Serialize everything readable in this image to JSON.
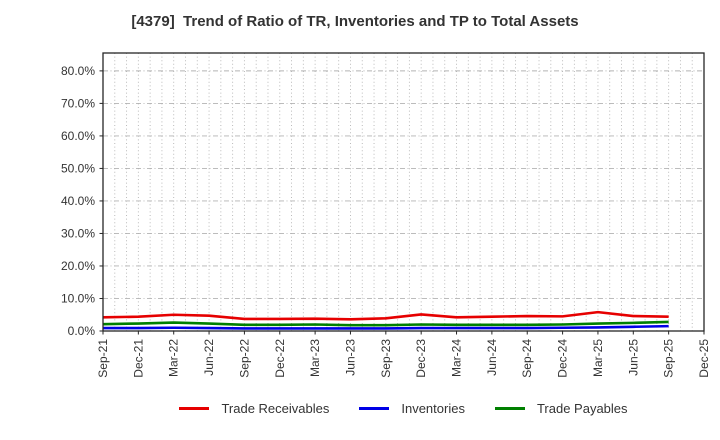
{
  "chart_data": {
    "type": "line",
    "title": "[4379]  Trend of Ratio of TR, Inventories and TP to Total Assets",
    "x_labels": [
      "Sep-21",
      "Dec-21",
      "Mar-22",
      "Jun-22",
      "Sep-22",
      "Dec-22",
      "Mar-23",
      "Jun-23",
      "Sep-23",
      "Dec-23",
      "Mar-24",
      "Jun-24",
      "Sep-24",
      "Dec-24",
      "Mar-25",
      "Jun-25",
      "Sep-25",
      "Dec-25"
    ],
    "x_minor_per_major": 3,
    "ylim": [
      0,
      85.5
    ],
    "ytick_values": [
      0,
      10,
      20,
      30,
      40,
      50,
      60,
      70,
      80
    ],
    "ytick_labels": [
      "0.0%",
      "10.0%",
      "20.0%",
      "30.0%",
      "40.0%",
      "50.0%",
      "60.0%",
      "70.0%",
      "80.0%"
    ],
    "grid": true,
    "legend_position": "bottom",
    "series": [
      {
        "name": "Trade Receivables",
        "color": "#e60000",
        "values": [
          4.2,
          4.4,
          5.0,
          4.7,
          3.7,
          3.7,
          3.8,
          3.6,
          3.9,
          5.1,
          4.2,
          4.4,
          4.6,
          4.5,
          5.8,
          4.6,
          4.4
        ]
      },
      {
        "name": "Inventories",
        "color": "#0000e6",
        "values": [
          0.9,
          0.9,
          1.0,
          0.9,
          0.8,
          0.8,
          0.8,
          0.8,
          0.8,
          0.9,
          0.9,
          0.9,
          0.9,
          1.0,
          1.1,
          1.3,
          1.5
        ]
      },
      {
        "name": "Trade Payables",
        "color": "#008000",
        "values": [
          2.1,
          2.3,
          2.6,
          2.3,
          1.9,
          1.9,
          2.0,
          1.8,
          1.8,
          2.0,
          1.9,
          1.9,
          1.9,
          2.0,
          2.3,
          2.5,
          2.8
        ]
      }
    ],
    "colors": {
      "grid": "#b3b3b3",
      "axis": "#262626",
      "tick_text": "#333333",
      "title_text": "#333333"
    }
  }
}
